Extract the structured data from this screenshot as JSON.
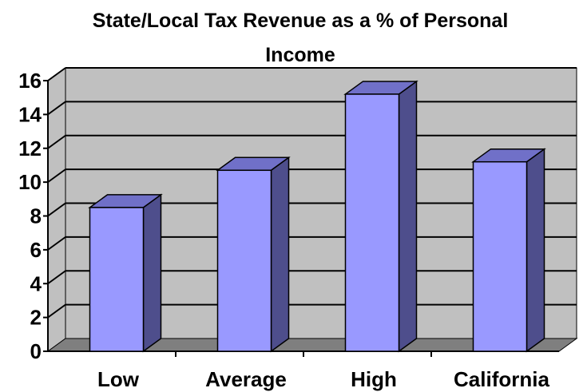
{
  "chart_data": {
    "type": "bar",
    "title": "State/Local Tax Revenue as a % of Personal Income",
    "title_lines": [
      "State/Local Tax Revenue as a % of Personal",
      "Income"
    ],
    "xlabel": "",
    "ylabel": "",
    "categories": [
      "Low",
      "Average",
      "High",
      "California"
    ],
    "values": [
      8.5,
      10.7,
      15.2,
      11.2
    ],
    "ylim": [
      0,
      16
    ],
    "yticks": [
      0,
      2,
      4,
      6,
      8,
      10,
      12,
      14,
      16
    ],
    "grid": true,
    "legend": "none",
    "three_d": true,
    "colors": {
      "bar_front": "#9999ff",
      "bar_side": "#4e4e8c",
      "bar_top": "#7070c8",
      "wall": "#c0c0c0",
      "floor": "#7f7f7f",
      "gridline": "#000000"
    }
  }
}
